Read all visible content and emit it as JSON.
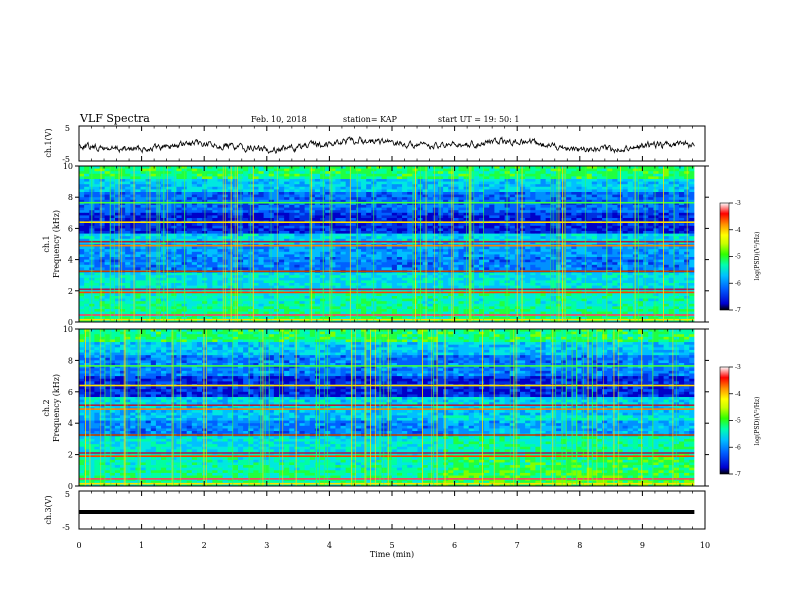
{
  "header": {
    "title": "VLF Spectra",
    "date": "Feb. 10, 2018",
    "station": "station= KAP",
    "start_ut": "start  UT =   19: 50: 1"
  },
  "colors": {
    "colorbar_stops": [
      "#000000",
      "#0000d0",
      "#0060ff",
      "#00c0ff",
      "#00ffb0",
      "#30ff00",
      "#c8ff00",
      "#ffff00",
      "#ff9000",
      "#ff0000",
      "#ffffff"
    ],
    "waveform": "#000000"
  },
  "chart_data": [
    {
      "type": "line",
      "name": "waveform-ch1",
      "ylabel": "ch.1(V)",
      "ylim": [
        -5,
        5
      ],
      "yticks": [
        "5",
        "-5"
      ],
      "xlim": [
        0,
        10
      ],
      "grid": false
    },
    {
      "type": "heatmap",
      "name": "spectrogram-ch1",
      "ylabel": "ch.1",
      "ylabel2": "Frequency (kHz)",
      "ylim": [
        0,
        10
      ],
      "yticks": [
        "0",
        "2",
        "4",
        "6",
        "8",
        "10"
      ],
      "xlim": [
        0,
        10
      ],
      "colorbar": {
        "label": "log(PSD)(V²/Hz)",
        "ticks": [
          "-3",
          "-4",
          "-5",
          "-6",
          "-7"
        ],
        "range": [
          -7,
          -3
        ]
      }
    },
    {
      "type": "heatmap",
      "name": "spectrogram-ch2",
      "ylabel": "ch.2",
      "ylabel2": "Frequency (kHz)",
      "ylim": [
        0,
        10
      ],
      "yticks": [
        "0",
        "2",
        "4",
        "6",
        "8",
        "10"
      ],
      "xlim": [
        0,
        10
      ],
      "colorbar": {
        "label": "log(PSD)(V²/Hz)",
        "ticks": [
          "-3",
          "-4",
          "-5",
          "-6",
          "-7"
        ],
        "range": [
          -7,
          -3
        ]
      }
    },
    {
      "type": "line",
      "name": "waveform-ch3",
      "ylabel": "ch.3(V)",
      "ylim": [
        -5,
        5
      ],
      "yticks": [
        "5",
        "-5"
      ],
      "xlim": [
        0,
        10
      ],
      "x": [
        0,
        9.83
      ],
      "values": [
        0,
        0
      ],
      "grid": false
    }
  ],
  "xaxis": {
    "label": "Time (min)",
    "ticks": [
      "0",
      "1",
      "2",
      "3",
      "4",
      "5",
      "6",
      "7",
      "8",
      "9",
      "10"
    ]
  }
}
